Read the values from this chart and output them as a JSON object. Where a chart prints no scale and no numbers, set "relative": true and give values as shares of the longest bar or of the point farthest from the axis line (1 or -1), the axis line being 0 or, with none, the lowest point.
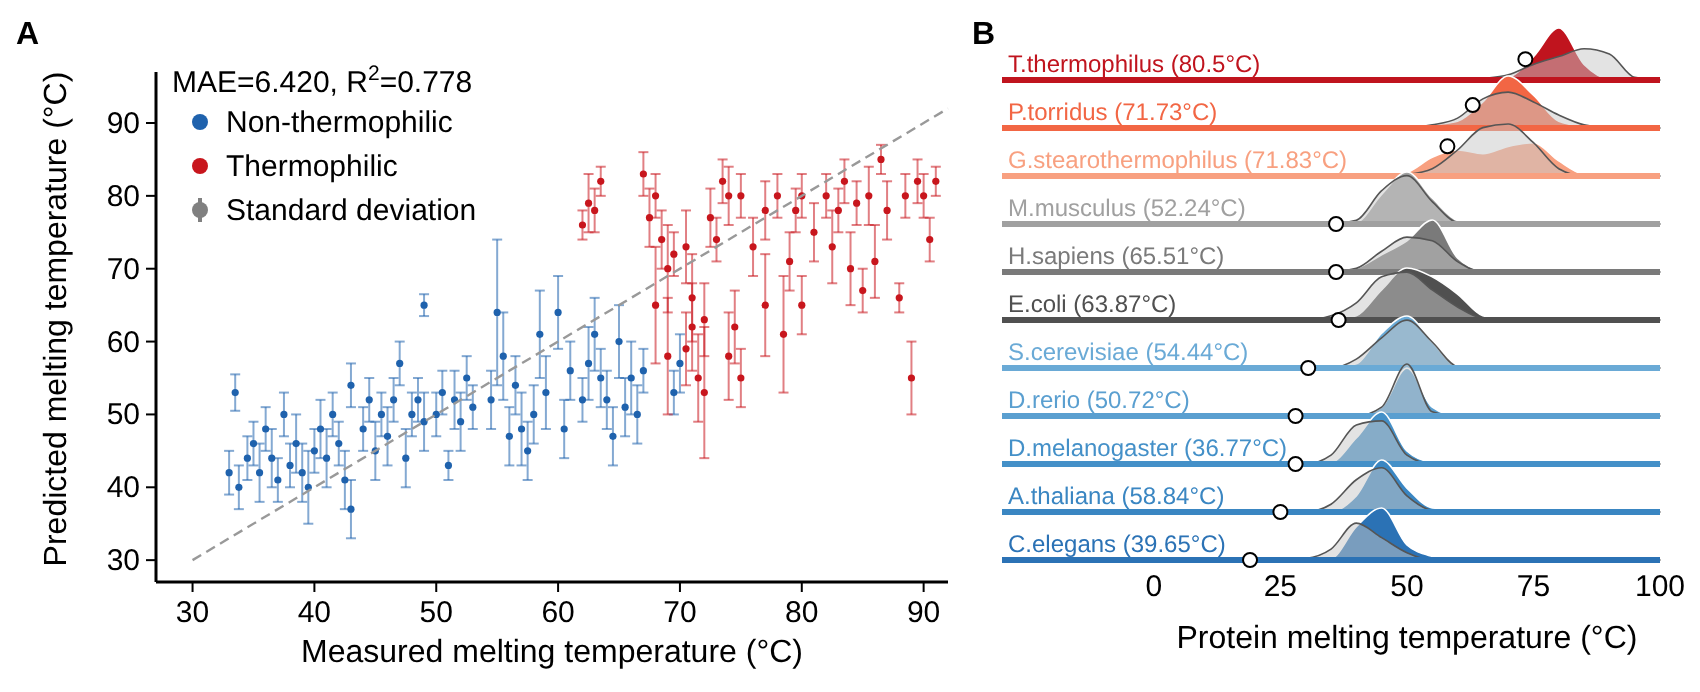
{
  "chart_data": [
    {
      "type": "scatter",
      "title": "A",
      "xlabel": "Measured melting temperature (°C)",
      "ylabel": "Predicted melting temperature (°C)",
      "annotations": [
        "MAE=6.420, R$^{2}$=0.778"
      ],
      "xlim": [
        27,
        92
      ],
      "ylim": [
        27,
        97
      ],
      "xticks": [
        30,
        40,
        50,
        60,
        70,
        80,
        90
      ],
      "yticks": [
        30,
        40,
        50,
        60,
        70,
        80,
        90
      ],
      "grid": false,
      "legend": "top left",
      "marker": "circle",
      "series": [
        {
          "name": "Non-thermophilic",
          "color": "#1f62ad",
          "x": [
            33,
            33.5,
            33.8,
            34.5,
            35,
            35.5,
            36,
            36.5,
            37,
            37.5,
            38,
            38.5,
            39,
            39.5,
            40,
            40.5,
            41,
            41.5,
            42,
            42.5,
            43,
            43,
            44,
            44.5,
            45,
            45.5,
            46,
            46.5,
            47,
            47.5,
            48,
            48.5,
            49,
            49,
            50,
            50.5,
            51,
            51.5,
            52,
            52.5,
            53,
            54.5,
            55,
            55.5,
            56,
            56.5,
            57,
            57.5,
            58,
            58.5,
            59,
            60,
            60.5,
            61,
            62,
            62.5,
            63,
            63.5,
            64,
            64.5,
            65,
            65.5,
            66,
            66.5,
            67,
            69.5,
            70
          ],
          "values": [
            42,
            53,
            40,
            44,
            46,
            42,
            48,
            44,
            41,
            50,
            43,
            46,
            42,
            40,
            45,
            48,
            44,
            50,
            46,
            41,
            37,
            54,
            48,
            52,
            45,
            50,
            47,
            52,
            57,
            44,
            50,
            52,
            65,
            49,
            50,
            53,
            43,
            52,
            49,
            55,
            51,
            52,
            64,
            58,
            47,
            54,
            48,
            45,
            50,
            61,
            53,
            64,
            48,
            56,
            52,
            57,
            61,
            55,
            52,
            47,
            60,
            51,
            55,
            50,
            56,
            53,
            57
          ],
          "errors": [
            3,
            2.5,
            3,
            3,
            3,
            4,
            3,
            4,
            3,
            3,
            3,
            4,
            4,
            5,
            3,
            4,
            4,
            3,
            3,
            4,
            4,
            3,
            3,
            3,
            4,
            3,
            4,
            3,
            3,
            4,
            3,
            3,
            1.5,
            4,
            3,
            3,
            2,
            4,
            4,
            3,
            3,
            4,
            10,
            6,
            4,
            4,
            5,
            4,
            4,
            6,
            5,
            5,
            4,
            4,
            3,
            5,
            5,
            4,
            4,
            4,
            5,
            4,
            5,
            4,
            3,
            3,
            4
          ]
        },
        {
          "name": "Thermophilic",
          "color": "#c8161d",
          "x": [
            62,
            62.5,
            63,
            63.5,
            67,
            67.5,
            68,
            68,
            68.5,
            69,
            69,
            69.5,
            70.5,
            70.5,
            71,
            71,
            71.5,
            72,
            72,
            72.5,
            73,
            73.5,
            74,
            74,
            74.5,
            75,
            75,
            76,
            77,
            77,
            78,
            78.5,
            79,
            79.5,
            80,
            80,
            81,
            82,
            82.5,
            83,
            83.5,
            84,
            84.5,
            85,
            85.5,
            86,
            86.5,
            87,
            88,
            88.5,
            89,
            89.5,
            90,
            90.5,
            91
          ],
          "values": [
            76,
            79,
            78,
            82,
            83,
            77,
            80,
            65,
            74,
            70,
            58,
            72,
            73,
            59,
            66,
            62,
            55,
            53,
            63,
            77,
            74,
            82,
            58,
            80,
            62,
            55,
            80,
            73,
            65,
            78,
            80,
            61,
            71,
            78,
            65,
            80,
            75,
            80,
            73,
            78,
            82,
            70,
            79,
            67,
            80,
            71,
            85,
            78,
            66,
            80,
            55,
            82,
            80,
            74,
            82
          ],
          "errors": [
            2,
            4,
            3,
            2,
            3,
            4,
            3,
            8,
            4,
            6,
            8,
            3,
            5,
            5,
            6,
            6,
            6,
            9,
            5,
            4,
            3,
            3,
            6,
            4,
            5,
            4,
            3,
            4,
            7,
            4,
            3,
            8,
            4,
            3,
            4,
            3,
            4,
            3,
            5,
            3,
            3,
            5,
            3,
            3,
            4,
            5,
            2,
            4,
            2,
            3,
            5,
            3,
            3,
            3,
            2
          ]
        },
        {
          "name": "Standard deviation",
          "color": "#808080"
        },
        {
          "type": "line",
          "color": "#999999",
          "line_style": "dashed",
          "marker": "none",
          "x": [
            30,
            92
          ],
          "values": [
            30,
            92
          ]
        }
      ]
    },
    {
      "type": "area",
      "title": "B",
      "relative": true,
      "xlim": [
        -30,
        100
      ],
      "tick_labels": false,
      "legend": "left",
      "x": [
        15,
        20,
        25,
        30,
        35,
        40,
        45,
        50,
        55,
        60,
        65,
        70,
        75,
        80,
        85,
        90,
        95,
        100
      ],
      "series": [
        {
          "color": "#c8c8c8",
          "values": [
            0,
            0,
            0,
            0,
            0,
            0,
            0,
            0,
            0,
            0,
            0.03,
            0.1,
            0.3,
            0.45,
            0.6,
            0.5,
            0.05,
            0
          ]
        },
        {
          "name": "T.thermophilus (80.5°C)",
          "color": "#c0141e",
          "values": [
            0,
            0,
            0,
            0,
            0,
            0,
            0,
            0,
            0,
            0,
            0,
            0.05,
            0.45,
            1,
            0.3,
            0.02,
            0,
            0
          ]
        },
        {
          "type": "scatter",
          "color": "#ffffff",
          "x": [
            73.4
          ],
          "values": [
            0.4
          ]
        }
      ]
    },
    {
      "type": "area",
      "relative": true,
      "xlim": [
        -30,
        100
      ],
      "tick_labels": false,
      "legend": "left",
      "x": [
        15,
        20,
        25,
        30,
        35,
        40,
        45,
        50,
        55,
        60,
        65,
        70,
        75,
        80,
        85,
        90,
        95,
        100
      ],
      "series": [
        {
          "color": "#c8c8c8",
          "values": [
            0,
            0,
            0,
            0,
            0,
            0,
            0,
            0,
            0.06,
            0.19,
            0.56,
            0.69,
            0.5,
            0.25,
            0.06,
            0,
            0,
            0
          ]
        },
        {
          "name": "P.torridus (71.73°C)",
          "color": "#f26644",
          "values": [
            0,
            0,
            0,
            0,
            0,
            0,
            0,
            0,
            0.06,
            0.13,
            0.5,
            1,
            0.63,
            0.13,
            0.03,
            0,
            0,
            0
          ]
        },
        {
          "type": "scatter",
          "color": "#ffffff",
          "x": [
            63
          ],
          "values": [
            0.44
          ]
        }
      ]
    },
    {
      "type": "area",
      "relative": true,
      "xlim": [
        -30,
        100
      ],
      "tick_labels": false,
      "legend": "left",
      "x": [
        15,
        20,
        25,
        30,
        35,
        40,
        45,
        50,
        55,
        60,
        65,
        70,
        75,
        80,
        85,
        90,
        95,
        100
      ],
      "series": [
        {
          "color": "#c8c8c8",
          "values": [
            0,
            0,
            0,
            0,
            0,
            0,
            0,
            0.03,
            0.14,
            0.5,
            0.93,
            1,
            0.64,
            0.14,
            0,
            0,
            0,
            0
          ]
        },
        {
          "name": "G.stearothermophilus (71.83°C)",
          "color": "#f8a080",
          "values": [
            0,
            0,
            0,
            0,
            0,
            0,
            0,
            0.07,
            0.36,
            0.5,
            0.43,
            0.57,
            0.64,
            0.29,
            0.03,
            0,
            0,
            0
          ]
        },
        {
          "type": "scatter",
          "color": "#ffffff",
          "x": [
            58
          ],
          "values": [
            0.57
          ]
        }
      ]
    },
    {
      "type": "area",
      "relative": true,
      "xlim": [
        -30,
        100
      ],
      "tick_labels": false,
      "legend": "left",
      "x": [
        15,
        20,
        25,
        30,
        35,
        40,
        45,
        50,
        55,
        60,
        65,
        70,
        75,
        80,
        85,
        90,
        95,
        100
      ],
      "series": [
        {
          "color": "#c8c8c8",
          "values": [
            0,
            0,
            0,
            0,
            0,
            0.07,
            0.64,
            0.93,
            0.43,
            0.03,
            0,
            0,
            0,
            0,
            0,
            0,
            0,
            0
          ]
        },
        {
          "name": "M.musculus (52.24°C)",
          "color": "#a0a0a0",
          "values": [
            0,
            0,
            0,
            0,
            0,
            0.03,
            0.57,
            1,
            0.5,
            0.07,
            0,
            0,
            0,
            0,
            0,
            0,
            0,
            0
          ]
        },
        {
          "type": "scatter",
          "color": "#ffffff",
          "x": [
            36
          ],
          "values": [
            0
          ]
        }
      ]
    },
    {
      "type": "area",
      "relative": true,
      "xlim": [
        -30,
        100
      ],
      "tick_labels": false,
      "legend": "left",
      "x": [
        15,
        20,
        25,
        30,
        35,
        40,
        45,
        50,
        55,
        60,
        65,
        70,
        75,
        80,
        85,
        90,
        95,
        100
      ],
      "series": [
        {
          "color": "#c8c8c8",
          "values": [
            0,
            0,
            0,
            0,
            0,
            0.07,
            0.4,
            0.67,
            0.6,
            0.2,
            0,
            0,
            0,
            0,
            0,
            0,
            0,
            0
          ]
        },
        {
          "name": "H.sapiens (65.51°C)",
          "color": "#7a7a7a",
          "values": [
            0,
            0,
            0,
            0,
            0,
            0.07,
            0.33,
            0.6,
            1,
            0.27,
            0.03,
            0,
            0,
            0,
            0,
            0,
            0,
            0
          ]
        },
        {
          "type": "scatter",
          "color": "#ffffff",
          "x": [
            36
          ],
          "values": [
            0
          ]
        }
      ]
    },
    {
      "type": "area",
      "relative": true,
      "xlim": [
        -30,
        100
      ],
      "tick_labels": false,
      "legend": "left",
      "x": [
        15,
        20,
        25,
        30,
        35,
        40,
        45,
        50,
        55,
        60,
        65,
        70,
        75,
        80,
        85,
        90,
        95,
        100
      ],
      "series": [
        {
          "color": "#c8c8c8",
          "values": [
            0,
            0,
            0,
            0,
            0.08,
            0.33,
            0.83,
            0.92,
            0.58,
            0.25,
            0.03,
            0,
            0,
            0,
            0,
            0,
            0,
            0
          ]
        },
        {
          "name": "E.coli (63.87°C)",
          "color": "#505050",
          "values": [
            0,
            0,
            0,
            0,
            0,
            0.08,
            0.58,
            1,
            0.83,
            0.5,
            0.08,
            0,
            0,
            0,
            0,
            0,
            0,
            0
          ]
        },
        {
          "type": "scatter",
          "color": "#ffffff",
          "x": [
            36.5
          ],
          "values": [
            0
          ]
        }
      ]
    },
    {
      "type": "area",
      "relative": true,
      "xlim": [
        -30,
        100
      ],
      "tick_labels": false,
      "legend": "left",
      "x": [
        15,
        20,
        25,
        30,
        35,
        40,
        45,
        50,
        55,
        60,
        65,
        70,
        75,
        80,
        85,
        90,
        95,
        100
      ],
      "series": [
        {
          "color": "#c8c8c8",
          "values": [
            0,
            0,
            0,
            0,
            0,
            0.17,
            0.58,
            0.92,
            0.5,
            0.03,
            0,
            0,
            0,
            0,
            0,
            0,
            0,
            0
          ]
        },
        {
          "name": "S.cerevisiae (54.44°C)",
          "color": "#6aaad6",
          "values": [
            0,
            0,
            0,
            0,
            0,
            0.08,
            0.67,
            1,
            0.5,
            0.03,
            0,
            0,
            0,
            0,
            0,
            0,
            0,
            0
          ]
        },
        {
          "type": "scatter",
          "color": "#ffffff",
          "x": [
            30.5
          ],
          "values": [
            0
          ]
        }
      ]
    },
    {
      "type": "area",
      "relative": true,
      "xlim": [
        -30,
        100
      ],
      "tick_labels": false,
      "legend": "left",
      "x": [
        15,
        20,
        25,
        30,
        35,
        40,
        45,
        50,
        55,
        60,
        65,
        70,
        75,
        80,
        85,
        90,
        95,
        100
      ],
      "series": [
        {
          "color": "#c8c8c8",
          "values": [
            0,
            0,
            0,
            0,
            0,
            0,
            0.17,
            1,
            0.08,
            0,
            0,
            0,
            0,
            0,
            0,
            0,
            0,
            0
          ]
        },
        {
          "name": "D.rerio (50.72°C)",
          "color": "#5a9fd0",
          "values": [
            0,
            0,
            0,
            0,
            0,
            0,
            0.17,
            0.92,
            0.17,
            0,
            0,
            0,
            0,
            0,
            0,
            0,
            0,
            0
          ]
        },
        {
          "type": "scatter",
          "color": "#ffffff",
          "x": [
            28
          ],
          "values": [
            0
          ]
        }
      ]
    },
    {
      "type": "area",
      "relative": true,
      "xlim": [
        -30,
        100
      ],
      "tick_labels": false,
      "legend": "left",
      "x": [
        15,
        20,
        25,
        30,
        35,
        40,
        45,
        50,
        55,
        60,
        65,
        70,
        75,
        80,
        85,
        90,
        95,
        100
      ],
      "series": [
        {
          "color": "#c8c8c8",
          "values": [
            0,
            0,
            0,
            0,
            0.17,
            0.75,
            0.83,
            0.17,
            0,
            0,
            0,
            0,
            0,
            0,
            0,
            0,
            0,
            0
          ]
        },
        {
          "name": "D.melanogaster (36.77°C)",
          "color": "#4490c8",
          "values": [
            0,
            0,
            0,
            0,
            0.03,
            0.5,
            1,
            0.25,
            0.03,
            0,
            0,
            0,
            0,
            0,
            0,
            0,
            0,
            0
          ]
        },
        {
          "type": "scatter",
          "color": "#ffffff",
          "x": [
            28
          ],
          "values": [
            0
          ]
        }
      ]
    },
    {
      "type": "area",
      "relative": true,
      "xlim": [
        -30,
        100
      ],
      "tick_labels": false,
      "legend": "left",
      "x": [
        15,
        20,
        25,
        30,
        35,
        40,
        45,
        50,
        55,
        60,
        65,
        70,
        75,
        80,
        85,
        90,
        95,
        100
      ],
      "series": [
        {
          "color": "#c8c8c8",
          "values": [
            0,
            0,
            0,
            0,
            0.15,
            0.62,
            0.85,
            0.31,
            0.03,
            0,
            0,
            0,
            0,
            0,
            0,
            0,
            0,
            0
          ]
        },
        {
          "name": "A.thaliana (58.84°C)",
          "color": "#3a86c2",
          "values": [
            0,
            0,
            0,
            0,
            0,
            0.31,
            1,
            0.46,
            0.08,
            0.05,
            0,
            0,
            0,
            0,
            0,
            0,
            0,
            0
          ]
        },
        {
          "type": "scatter",
          "color": "#ffffff",
          "x": [
            25
          ],
          "values": [
            0
          ]
        }
      ]
    },
    {
      "type": "area",
      "xlabel": "Protein melting temperature (°C)",
      "relative": true,
      "xlim": [
        -30,
        100
      ],
      "xticks": [
        0,
        25,
        50,
        75,
        100
      ],
      "tick_labels": "x",
      "legend": "left",
      "x": [
        15,
        20,
        25,
        30,
        35,
        40,
        45,
        50,
        55,
        60,
        65,
        70,
        75,
        80,
        85,
        90,
        95,
        100
      ],
      "series": [
        {
          "color": "#c8c8c8",
          "values": [
            0,
            0,
            0,
            0.03,
            0.21,
            0.71,
            0.43,
            0.14,
            0,
            0,
            0,
            0,
            0,
            0,
            0,
            0,
            0,
            0
          ]
        },
        {
          "name": "C.elegans (39.65°C)",
          "color": "#2b72b5",
          "values": [
            0,
            0,
            0,
            0,
            0.03,
            0.64,
            1,
            0.29,
            0.07,
            0,
            0,
            0,
            0,
            0,
            0,
            0,
            0,
            0
          ]
        },
        {
          "type": "scatter",
          "color": "#ffffff",
          "x": [
            19
          ],
          "values": [
            0
          ]
        }
      ]
    }
  ]
}
